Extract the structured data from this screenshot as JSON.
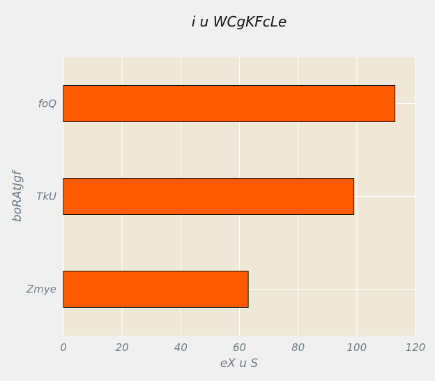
{
  "chart_data": {
    "type": "bar",
    "orientation": "horizontal",
    "title": "i u WCgKFcLe",
    "xlabel": "eX   u S",
    "ylabel": "boRAtJgf",
    "categories": [
      "foQ",
      "TkU",
      "Zmye"
    ],
    "values": [
      113,
      99,
      63
    ],
    "xlim": [
      0,
      120
    ],
    "xticks": [
      "0",
      "20",
      "40",
      "60",
      "80",
      "100",
      "120"
    ],
    "grid": true,
    "legend": "none",
    "colors": {
      "bar_fill": "#ff5a00",
      "bar_edge": "#111111",
      "plot_background": "#efe8d6",
      "figure_background": "#f0f0f0",
      "grid": "#ffffff",
      "text_muted": "#6b7b85"
    }
  }
}
